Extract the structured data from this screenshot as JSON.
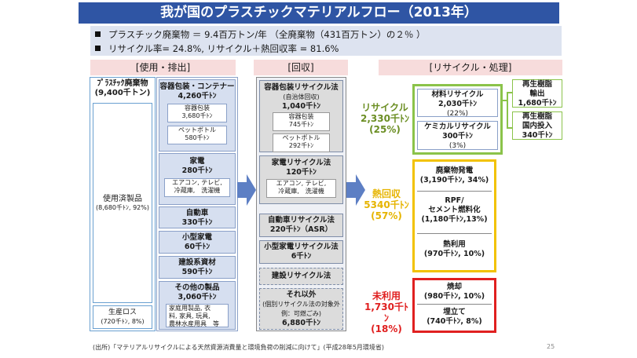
{
  "title": "我が国のプラスチックマテリアルフロー（2013年）",
  "summary": {
    "line1": "プラスチック廃棄物 ＝ 9.4百万トン/年 （全廃棄物（431百万トン）の２％ ）",
    "line2": "リサイクル率= 24.8%, リサイクル＋熱回収率 = 81.6%"
  },
  "headers": {
    "use": "[使用・排出]",
    "collect": "[回収]",
    "recycle": "[リサイクル・処理]"
  },
  "waste": {
    "title": "ﾌﾟﾗｽﾁｯｸ廃棄物",
    "total": "(9,400千トン)",
    "used_label": "使用済製品",
    "used_value": "(8,680千ﾄﾝ, 92%)",
    "loss_label": "生産ロス",
    "loss_value": "(720千ﾄﾝ, 8%)"
  },
  "use_items": [
    {
      "name": "容器包装・コンテナー",
      "value": "4,260千ﾄﾝ",
      "sub": [
        "容器包装",
        "3,680千ﾄﾝ",
        "ペットボトル",
        "580千ﾄﾝ"
      ]
    },
    {
      "name": "家電",
      "value": "280千ﾄﾝ",
      "sub": [
        "エアコン, テレビ,",
        "冷蔵庫,　洗濯機"
      ]
    },
    {
      "name": "自動車",
      "value": "330千ﾄﾝ"
    },
    {
      "name": "小型家電",
      "value": "60千ﾄﾝ"
    },
    {
      "name": "建設系資材",
      "value": "590千ﾄﾝ"
    },
    {
      "name": "その他の製品",
      "value": "3,060千ﾄﾝ",
      "sub": [
        "家庭用製品, 衣",
        "料, 家具, 玩具,",
        "農林水産用具　等"
      ]
    }
  ],
  "collect_items": [
    {
      "name": "容器包装リサイクル法",
      "note": "(自治体回収)",
      "value": "1,040千ﾄﾝ",
      "sub": [
        "容器包装",
        "745千ﾄﾝ",
        "ペットボトル",
        "292千ﾄﾝ"
      ]
    },
    {
      "name": "家電リサイクル法",
      "value": "120千ﾄﾝ",
      "sub": [
        "エアコン, テレビ,",
        "冷蔵庫,　洗濯機"
      ]
    },
    {
      "name": "自動車リサイクル法",
      "value": "220千ﾄﾝ（ASR）"
    },
    {
      "name": "小型家電リサイクル法",
      "value": "6千ﾄﾝ"
    },
    {
      "name": "建設リサイクル法"
    },
    {
      "name": "それ以外",
      "note": "(個別リサイクル法の対象外",
      "note2": "例：可燃ごみ)",
      "value": "6,880千ﾄﾝ"
    }
  ],
  "recycle": {
    "label": "リサイクル",
    "value": "2,330千ﾄﾝ",
    "pct": "(25%)",
    "material": {
      "name": "材料リサイクル",
      "value": "2,030千ﾄﾝ",
      "pct": "(22%)"
    },
    "chemical": {
      "name": "ケミカルリサイクル",
      "value": "300千ﾄﾝ",
      "pct": "(3%)"
    },
    "export": [
      "再生樹脂",
      "輸出",
      "1,680千ﾄﾝ"
    ],
    "domestic": [
      "再生樹脂",
      "国内投入",
      "340千ﾄﾝ"
    ]
  },
  "heat": {
    "label": "熱回収",
    "value": "5340千ﾄﾝ",
    "pct": "(57%)",
    "items": [
      [
        "廃棄物発電",
        "(3,190千ﾄﾝ, 34%)"
      ],
      [
        "RPF/",
        "セメント燃料化",
        "(1,180千ﾄﾝ,13%)"
      ],
      [
        "熱利用",
        "(970千ﾄﾝ, 10%)"
      ]
    ]
  },
  "unused": {
    "label": "未利用",
    "value": "1,730千ﾄﾝ",
    "pct": "(18%)",
    "items": [
      [
        "焼却",
        "(980千ﾄﾝ, 10%)"
      ],
      [
        "埋立て",
        "(740千ﾄﾝ, 8%)"
      ]
    ]
  },
  "footer": "(出所)「マテリアルリサイクルによる天然資源消費量と環境負荷の削減に向けて」(平成28年5月環境省)",
  "page_number": "25",
  "colors": {
    "title_bg": "#2f55a4",
    "recycle": "#8bc34a",
    "heat": "#f2c200",
    "unused": "#e02020",
    "arrow": "#5d7fc4"
  }
}
